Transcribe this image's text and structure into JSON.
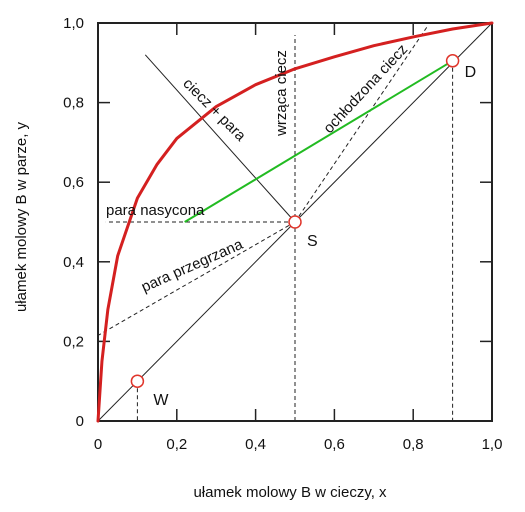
{
  "chart_data": {
    "type": "line",
    "xlabel": "ułamek molowy B w cieczy,   x",
    "ylabel": "ułamek molowy B w parze,   y",
    "xlim": [
      0,
      1
    ],
    "ylim": [
      0,
      1
    ],
    "x_ticks": [
      "0",
      "0,2",
      "0,4",
      "0,6",
      "0,8",
      "1,0"
    ],
    "y_ticks": [
      "0",
      "0,2",
      "0,4",
      "0,6",
      "0,8",
      "1,0"
    ],
    "grid": false,
    "colors": {
      "equilibrium_curve": "#d42020",
      "tie_line": "#22bb22",
      "points": "#e0352b",
      "lines": "#222222"
    },
    "series": [
      {
        "values": [
          {
            "x": 0.0,
            "y": 0.0
          },
          {
            "x": 0.01,
            "y": 0.15
          },
          {
            "x": 0.025,
            "y": 0.28
          },
          {
            "x": 0.05,
            "y": 0.415
          },
          {
            "x": 0.1,
            "y": 0.56
          },
          {
            "x": 0.15,
            "y": 0.645
          },
          {
            "x": 0.2,
            "y": 0.71
          },
          {
            "x": 0.3,
            "y": 0.79
          },
          {
            "x": 0.4,
            "y": 0.845
          },
          {
            "x": 0.5,
            "y": 0.885
          },
          {
            "x": 0.6,
            "y": 0.915
          },
          {
            "x": 0.7,
            "y": 0.943
          },
          {
            "x": 0.8,
            "y": 0.965
          },
          {
            "x": 0.9,
            "y": 0.985
          },
          {
            "x": 1.0,
            "y": 1.0
          }
        ]
      }
    ],
    "diagonal": [
      [
        0,
        0
      ],
      [
        1,
        1
      ]
    ],
    "points": [
      {
        "label": "W",
        "x": 0.1,
        "y": 0.1
      },
      {
        "label": "S",
        "x": 0.5,
        "y": 0.5
      },
      {
        "label": "D",
        "x": 0.9,
        "y": 0.905
      }
    ],
    "annotations": [
      {
        "text": "wrząca ciecz"
      },
      {
        "text": "ciecz + para"
      },
      {
        "text": "ochłodzona ciecz"
      },
      {
        "text": "para nasycona"
      },
      {
        "text": "para przegrzana"
      }
    ]
  }
}
